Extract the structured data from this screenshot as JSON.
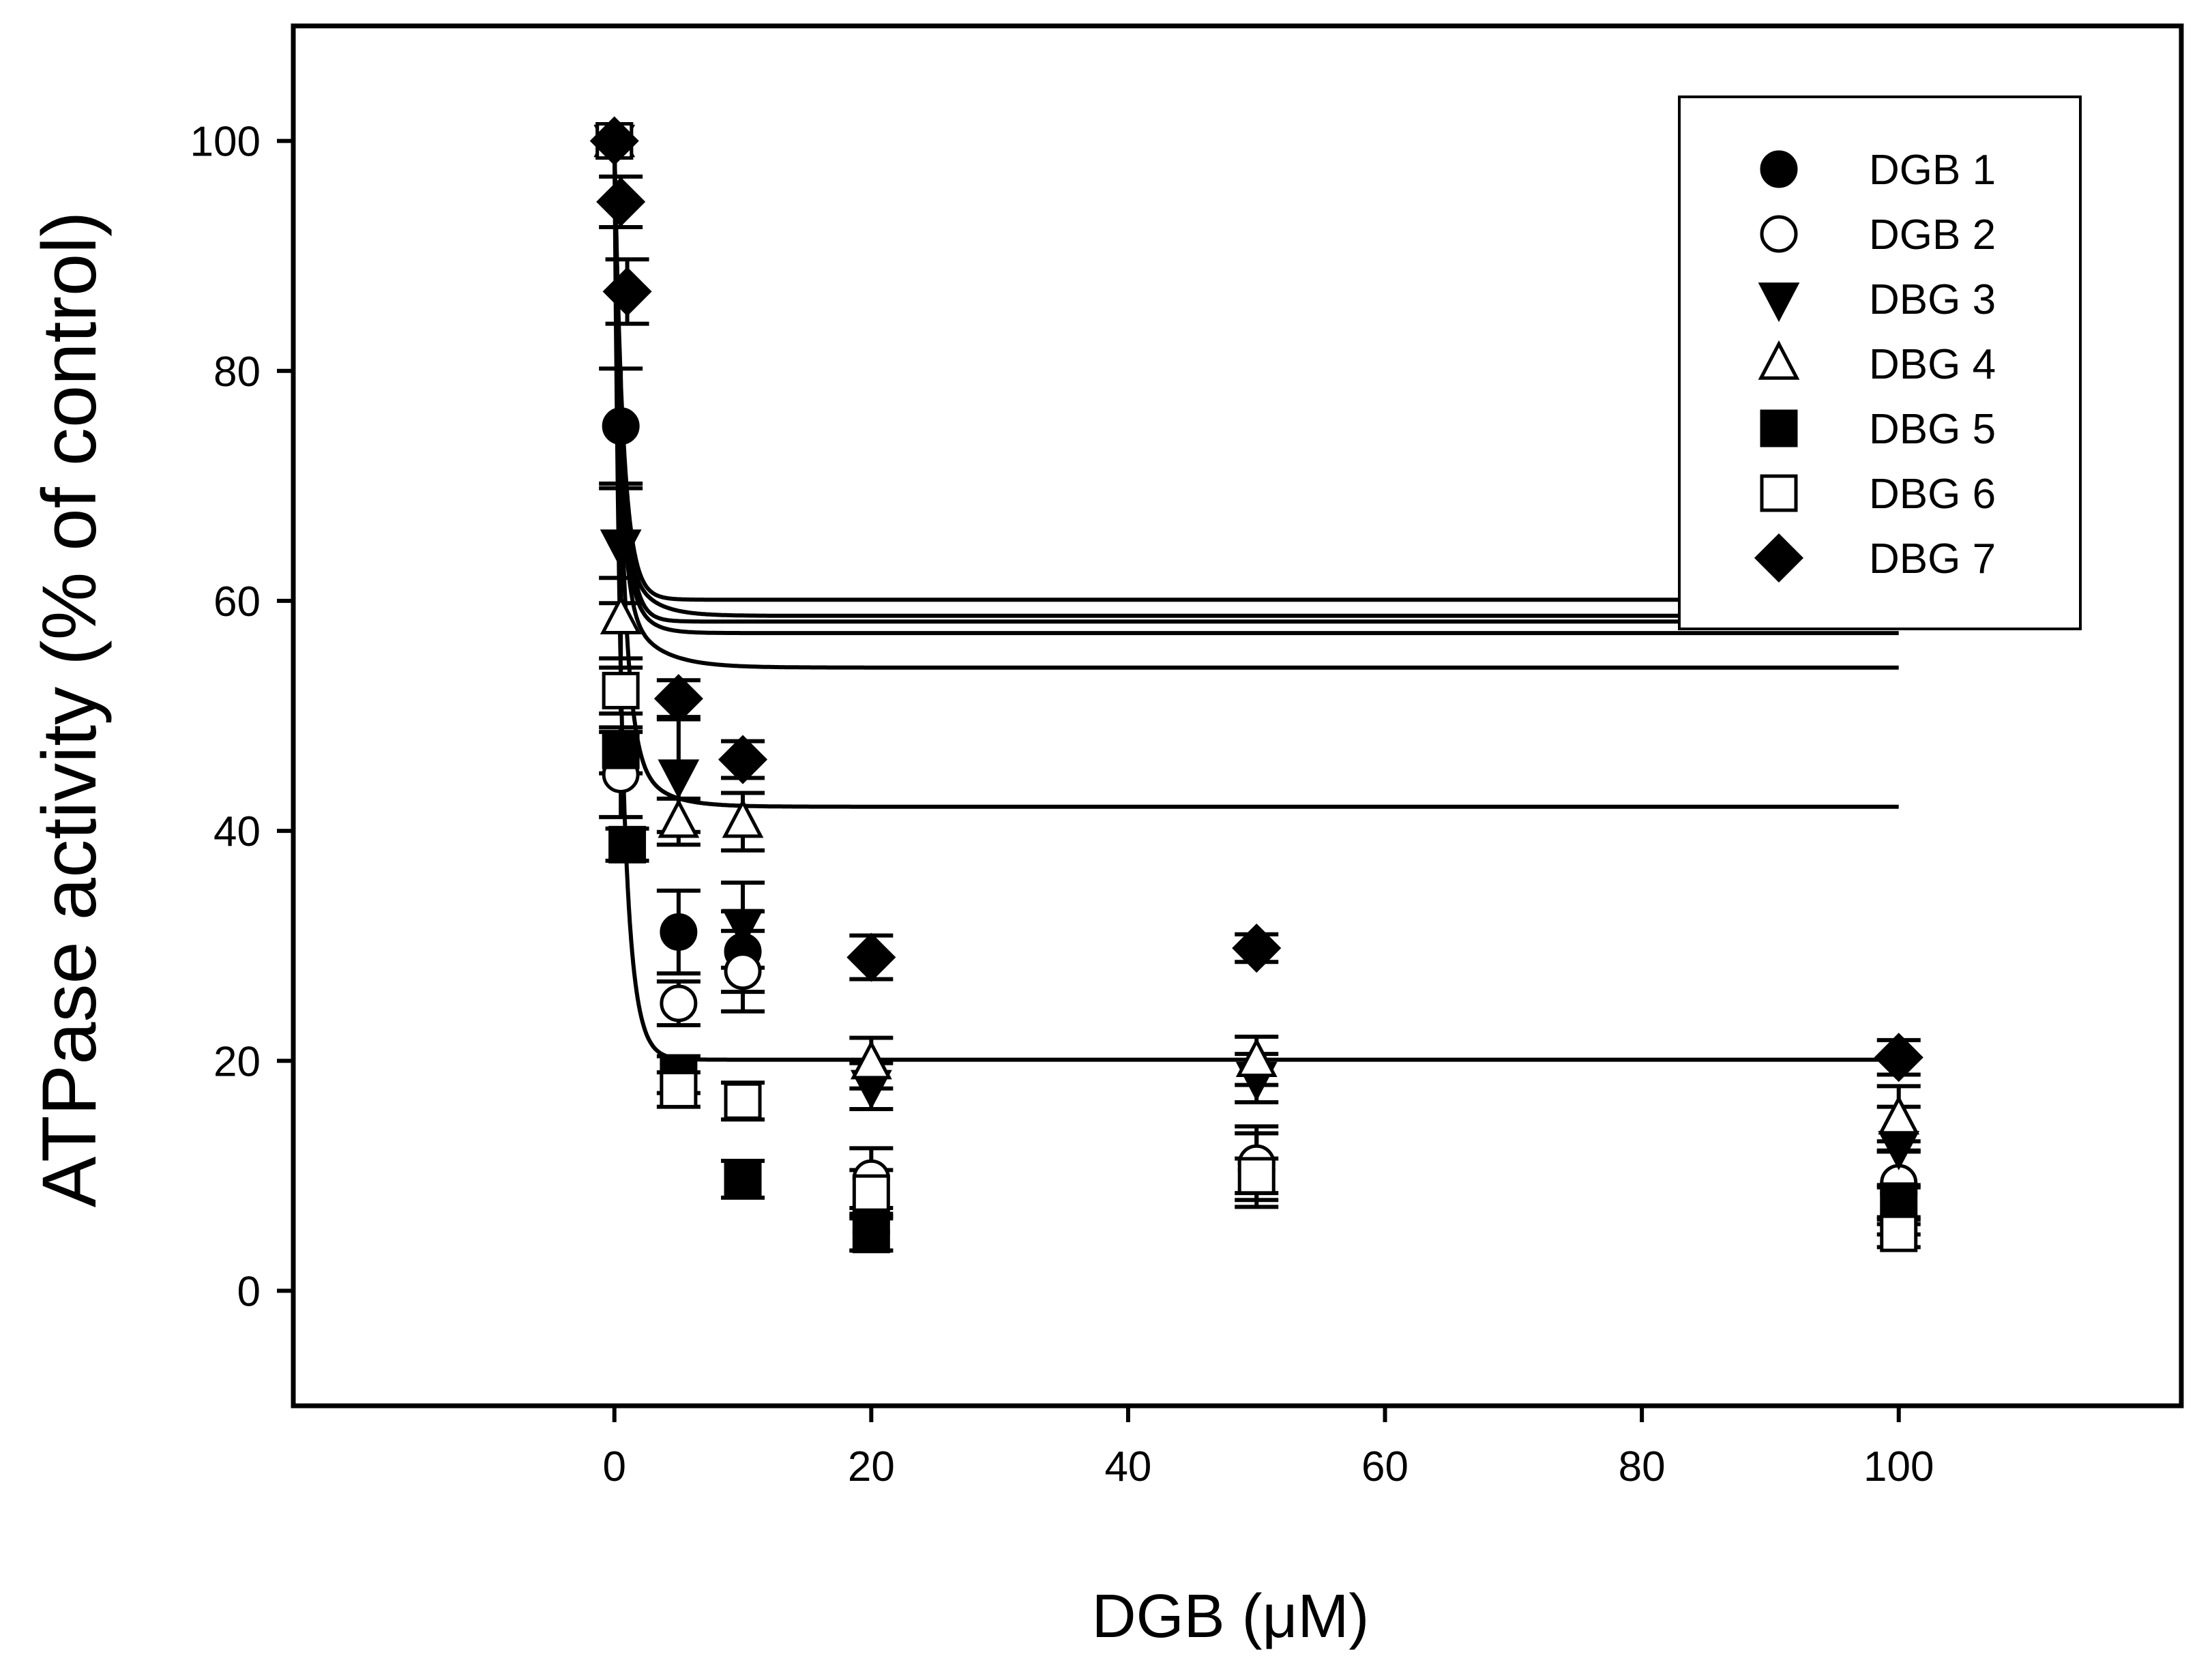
{
  "chart_data": {
    "type": "scatter",
    "title": "",
    "xlabel": "DGB (μM)",
    "ylabel": "ATPase activity (% of control)",
    "xlim": [
      -25,
      122
    ],
    "ylim": [
      -10,
      110
    ],
    "xticks": [
      0,
      20,
      40,
      60,
      80,
      100
    ],
    "yticks": [
      0,
      20,
      40,
      60,
      80,
      100
    ],
    "legend_position": "top-right",
    "fit_lines": true,
    "colors": {
      "ink": "#000000",
      "background": "#ffffff"
    },
    "series": [
      {
        "name": "DGB 1",
        "marker": "circle-filled",
        "x": [
          0,
          0.5,
          5,
          10,
          20,
          50,
          100
        ],
        "y": [
          100,
          75.2,
          31.2,
          29.5,
          5.1,
          10.5,
          8.5
        ],
        "err": [
          0,
          5,
          3.6,
          3.5,
          1.6,
          3.2,
          3.6
        ],
        "fit": [
          39.4,
          0.49,
          6.4,
          2.5
        ]
      },
      {
        "name": "DGB 2",
        "marker": "circle-open",
        "x": [
          0,
          0.5,
          5,
          10,
          20,
          50,
          100
        ],
        "y": [
          100,
          44.9,
          25,
          27.8,
          9.8,
          11.1,
          9.4
        ],
        "err": [
          0,
          3.7,
          1.9,
          3.5,
          2.6,
          3.2,
          3.6
        ],
        "fit": [
          34.8,
          0.47,
          6.5,
          1.85
        ]
      },
      {
        "name": "DBG 3",
        "marker": "triangle-down-filled",
        "x": [
          0,
          0.5,
          5,
          10,
          20,
          50,
          100
        ],
        "y": [
          100,
          64.8,
          44.8,
          31.8,
          17.8,
          18.5,
          12.5
        ],
        "err": [
          0,
          5,
          4.9,
          3.7,
          2,
          2.1,
          3.5
        ],
        "fit": [
          30.5,
          0.62,
          9.4,
          0.9
        ]
      },
      {
        "name": "DBG 4",
        "marker": "triangle-up-open",
        "x": [
          0,
          0.5,
          5,
          10,
          20,
          50,
          100
        ],
        "y": [
          100,
          58.5,
          40.8,
          40.8,
          19.8,
          20,
          15
        ],
        "err": [
          0,
          3.5,
          2,
          2.5,
          2.2,
          2.1,
          2.8
        ],
        "fit": [
          32.4,
          0.6,
          9.4,
          0.9
        ]
      },
      {
        "name": "DBG 5",
        "marker": "square-filled",
        "x": [
          0,
          0.5,
          1,
          5,
          10,
          20,
          100
        ],
        "y": [
          100,
          47,
          38.8,
          18.8,
          9.7,
          4.9,
          7.8
        ],
        "err": [
          0,
          2,
          1.4,
          1.6,
          1.6,
          1.4,
          1.4
        ],
        "fit": [
          51.4,
          0.63,
          6.5,
          2.25
        ]
      },
      {
        "name": "DBG 6",
        "marker": "square-open",
        "x": [
          0,
          0.5,
          5,
          10,
          20,
          50,
          100
        ],
        "y": [
          100,
          52.2,
          17.5,
          16.5,
          8.5,
          10,
          5
        ],
        "err": [
          0,
          2,
          1.5,
          1.6,
          2,
          1.5,
          1.2
        ],
        "fit": [
          34.1,
          0.47,
          8.7,
          1.27
        ]
      },
      {
        "name": "DBG 7",
        "marker": "diamond-filled",
        "x": [
          0,
          0.5,
          1,
          5,
          10,
          20,
          50,
          100
        ],
        "y": [
          100,
          94.7,
          86.9,
          51.5,
          46.2,
          29,
          29.8,
          20.3
        ],
        "err": [
          0,
          2.2,
          2.8,
          1.6,
          1.6,
          1.9,
          1.2,
          1.5
        ],
        "fit": [
          49.9,
          0.8,
          30,
          0.34
        ]
      }
    ]
  }
}
